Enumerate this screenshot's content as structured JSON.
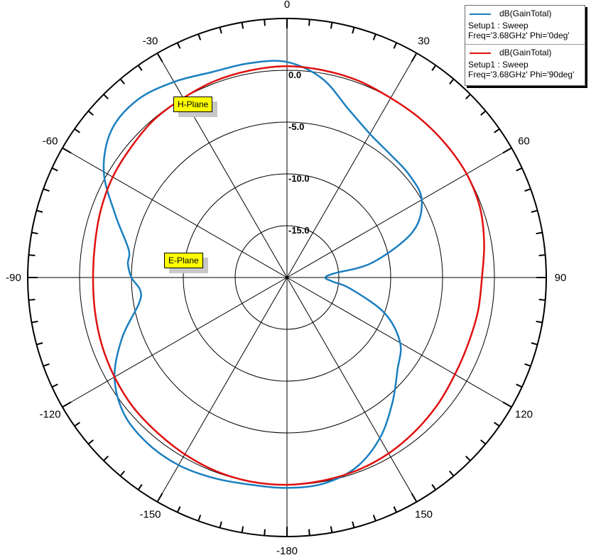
{
  "chart_data": {
    "type": "polar",
    "angular_unit": "deg",
    "radial_unit": "dB",
    "radial_range": [
      -20,
      0
    ],
    "radial_gridlines": [
      -15,
      -10,
      -5,
      0
    ],
    "radial_labels": [
      "0.0",
      "-5.0",
      "-10.0",
      "-15.0"
    ],
    "angular_ticks": [
      {
        "deg": 0,
        "label": "0"
      },
      {
        "deg": 30,
        "label": "30"
      },
      {
        "deg": 60,
        "label": "60"
      },
      {
        "deg": 90,
        "label": "90"
      },
      {
        "deg": 120,
        "label": "120"
      },
      {
        "deg": 150,
        "label": "150"
      },
      {
        "deg": 180,
        "label": "-180"
      },
      {
        "deg": -150,
        "label": "-150"
      },
      {
        "deg": -120,
        "label": "-120"
      },
      {
        "deg": -90,
        "label": "-90"
      },
      {
        "deg": -60,
        "label": "-60"
      },
      {
        "deg": -30,
        "label": "-30"
      }
    ],
    "grid": true,
    "legend_position": "top-right",
    "series": [
      {
        "name": "dB(GainTotal)",
        "setup": "Setup1 : Sweep",
        "params": "Freq='3.68GHz' Phi='0deg'",
        "color": "#1a7fc0",
        "angles": [
          0,
          10,
          20,
          30,
          40,
          50,
          60,
          70,
          80,
          85,
          90,
          95,
          100,
          110,
          120,
          130,
          140,
          150,
          160,
          170,
          180,
          -170,
          -160,
          -150,
          -140,
          -130,
          -120,
          -110,
          -100,
          -95,
          -90,
          -85,
          -80,
          -70,
          -60,
          -50,
          -40,
          -30,
          -20,
          -10
        ],
        "values": [
          0.8,
          -0.5,
          -2.7,
          -4.0,
          -4.5,
          -4.6,
          -5.0,
          -7.1,
          -11.6,
          -15.4,
          -16.3,
          -15.6,
          -13.8,
          -10.0,
          -7.4,
          -6.1,
          -4.2,
          -2.1,
          -0.5,
          0.2,
          0.3,
          0.3,
          0.6,
          0.9,
          0.9,
          0.5,
          -0.8,
          -3.1,
          -5.5,
          -5.8,
          -5.0,
          -4.6,
          -4.5,
          -2.4,
          0.4,
          2.1,
          2.4,
          1.8,
          1.1,
          1.0
        ]
      },
      {
        "name": "dB(GainTotal)",
        "setup": "Setup1 : Sweep",
        "params": "Freq='3.68GHz' Phi='90deg'",
        "color": "#e01010",
        "angles": [
          0,
          10,
          20,
          30,
          40,
          50,
          60,
          70,
          80,
          90,
          100,
          110,
          120,
          130,
          140,
          150,
          160,
          170,
          180,
          -170,
          -160,
          -150,
          -140,
          -130,
          -120,
          -110,
          -100,
          -90,
          -80,
          -70,
          -60,
          -50,
          -40,
          -30,
          -20,
          -10
        ],
        "values": [
          0.4,
          0.3,
          0.2,
          0.0,
          0.0,
          0.0,
          0.0,
          -0.2,
          -0.7,
          -1.2,
          -1.3,
          -1.4,
          -1.3,
          -1.0,
          -0.7,
          -0.4,
          -0.2,
          -0.1,
          0.0,
          0.0,
          -0.1,
          -0.3,
          -0.5,
          -0.6,
          -0.8,
          -1.0,
          -1.2,
          -1.3,
          -1.2,
          -0.9,
          -0.6,
          -0.4,
          -0.1,
          0.0,
          0.2,
          0.3
        ]
      }
    ]
  },
  "markers": [
    {
      "label": "H-Plane"
    },
    {
      "label": "E-Plane"
    }
  ]
}
